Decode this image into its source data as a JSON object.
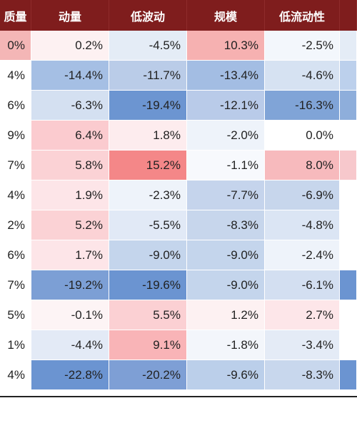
{
  "table": {
    "headers": [
      "质量",
      "动量",
      "低波动",
      "规模",
      "低流动性",
      ""
    ],
    "header_display": [
      "质量",
      "动量",
      "低波动",
      "规模",
      "低流动性",
      ""
    ],
    "rows": [
      [
        "0%",
        "0.2%",
        "-4.5%",
        "10.3%",
        "-2.5%",
        ""
      ],
      [
        "4%",
        "-14.4%",
        "-11.7%",
        "-13.4%",
        "-4.6%",
        ""
      ],
      [
        "6%",
        "-6.3%",
        "-19.4%",
        "-12.1%",
        "-16.3%",
        ""
      ],
      [
        "9%",
        "6.4%",
        "1.8%",
        "-2.0%",
        "0.0%",
        ""
      ],
      [
        "7%",
        "5.8%",
        "15.2%",
        "-1.1%",
        "8.0%",
        ""
      ],
      [
        "4%",
        "1.9%",
        "-2.3%",
        "-7.7%",
        "-6.9%",
        ""
      ],
      [
        "2%",
        "5.2%",
        "-5.5%",
        "-8.3%",
        "-4.8%",
        ""
      ],
      [
        "6%",
        "1.7%",
        "-9.0%",
        "-9.0%",
        "-2.4%",
        ""
      ],
      [
        "7%",
        "-19.2%",
        "-19.6%",
        "-9.0%",
        "-6.1%",
        ""
      ],
      [
        "5%",
        "-0.1%",
        "5.5%",
        "1.2%",
        "2.7%",
        ""
      ],
      [
        "1%",
        "-4.4%",
        "9.1%",
        "-1.8%",
        "-3.4%",
        ""
      ],
      [
        "4%",
        "-22.8%",
        "-20.2%",
        "-9.6%",
        "-8.3%",
        ""
      ]
    ],
    "colors": [
      [
        "#f4b6b6",
        "#fdf1f2",
        "#e4ecf6",
        "#f6b1b1",
        "#f3f7fc",
        "#e4ecf6"
      ],
      [
        "#ffffff",
        "#a5bfe4",
        "#bacce8",
        "#a3bde3",
        "#d6e2f2",
        "#bcd0ec"
      ],
      [
        "#ffffff",
        "#d4e0f1",
        "#6c95d1",
        "#b9cbe9",
        "#80a4d7",
        "#8eaedb"
      ],
      [
        "#ffffff",
        "#fbcbcf",
        "#fdecee",
        "#eef3fa",
        "#ffffff",
        "#ffffff"
      ],
      [
        "#ffffff",
        "#fbd2d5",
        "#f48788",
        "#f7f9fd",
        "#f7babd",
        "#f7c8cc"
      ],
      [
        "#ffffff",
        "#fde5e8",
        "#eef3fa",
        "#c5d4ec",
        "#c7d6ec",
        "#ffffff"
      ],
      [
        "#ffffff",
        "#fbd2d5",
        "#e1e9f6",
        "#c7d6ec",
        "#dbe5f4",
        "#ffffff"
      ],
      [
        "#ffffff",
        "#fde5e8",
        "#c4d5ec",
        "#c4d5ec",
        "#eef3fa",
        "#ffffff"
      ],
      [
        "#ffffff",
        "#7c9fd5",
        "#6b94d1",
        "#c4d5ec",
        "#d3dff1",
        "#6b94d1"
      ],
      [
        "#ffffff",
        "#fdf4f5",
        "#fbd0d3",
        "#fdf1f2",
        "#fde6e9",
        "#ffffff"
      ],
      [
        "#ffffff",
        "#e3eaf6",
        "#f9b4b7",
        "#f3f6fb",
        "#e4ebf6",
        "#ffffff"
      ],
      [
        "#ffffff",
        "#6b94d1",
        "#7e9fd5",
        "#bbcfea",
        "#c8d7ed",
        "#6b94d1"
      ]
    ]
  }
}
